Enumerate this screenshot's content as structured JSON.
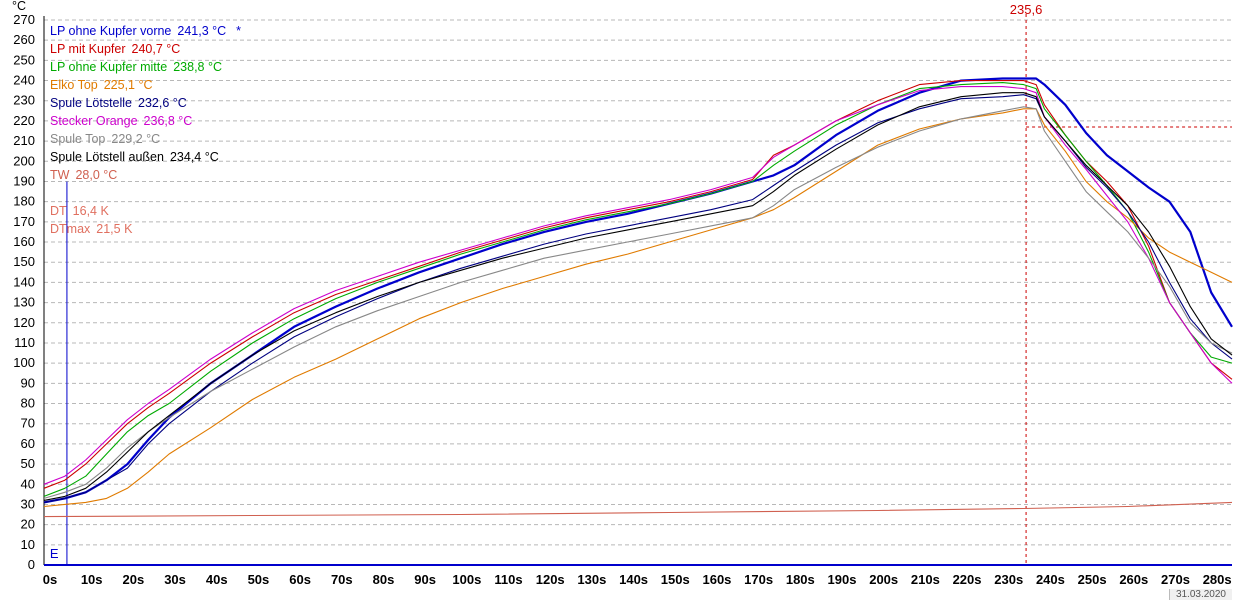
{
  "chart_data": {
    "type": "line",
    "ylabel": "°C",
    "xlim": [
      0,
      285
    ],
    "ylim": [
      0,
      270
    ],
    "y_ticks": [
      0,
      10,
      20,
      30,
      40,
      50,
      60,
      70,
      80,
      90,
      100,
      110,
      120,
      130,
      140,
      150,
      160,
      170,
      180,
      190,
      200,
      210,
      220,
      230,
      240,
      250,
      260,
      270
    ],
    "x_ticks": [
      "0s",
      "10s",
      "20s",
      "30s",
      "40s",
      "50s",
      "60s",
      "70s",
      "80s",
      "90s",
      "100s",
      "110s",
      "120s",
      "130s",
      "140s",
      "150s",
      "160s",
      "170s",
      "180s",
      "190s",
      "200s",
      "210s",
      "220s",
      "230s",
      "240s",
      "250s",
      "260s",
      "270s",
      "280s"
    ],
    "grid": true,
    "legend_position": "top-left",
    "cursor": {
      "x": 235.6,
      "label": "235,6",
      "y_marker": 217
    },
    "event_marker": {
      "x": 5.5,
      "label": "E"
    },
    "series": [
      {
        "name": "LP ohne Kupfer vorne",
        "reading": "241,3 °C",
        "color": "#0000cc",
        "width": 2.2,
        "active_marker": "*",
        "x": [
          0,
          5,
          10,
          15,
          20,
          25,
          30,
          40,
          50,
          60,
          70,
          80,
          90,
          100,
          110,
          120,
          130,
          140,
          150,
          160,
          170,
          175,
          180,
          190,
          200,
          210,
          220,
          230,
          235,
          238,
          240,
          245,
          250,
          255,
          260,
          265,
          270,
          275,
          280,
          285
        ],
        "y": [
          31,
          33,
          36,
          42,
          50,
          62,
          73,
          90,
          104,
          118,
          128,
          137,
          145,
          152,
          159,
          165,
          170,
          174,
          179,
          184,
          190,
          193,
          198,
          213,
          225,
          234,
          240,
          241,
          241,
          241,
          238,
          228,
          214,
          203,
          195,
          187,
          180,
          165,
          135,
          118
        ]
      },
      {
        "name": "LP mit Kupfer",
        "reading": "240,7 °C",
        "color": "#cc0000",
        "width": 1.1,
        "x": [
          0,
          5,
          10,
          15,
          20,
          25,
          30,
          40,
          50,
          60,
          70,
          80,
          90,
          100,
          110,
          120,
          130,
          140,
          150,
          160,
          170,
          175,
          180,
          190,
          200,
          210,
          220,
          230,
          235,
          238,
          240,
          245,
          250,
          255,
          260,
          265,
          270,
          275,
          280,
          285
        ],
        "y": [
          38,
          42,
          50,
          60,
          70,
          78,
          85,
          100,
          113,
          125,
          134,
          141,
          148,
          155,
          161,
          167,
          172,
          176,
          180,
          185,
          191,
          203,
          208,
          220,
          230,
          238,
          240,
          240,
          240,
          238,
          228,
          213,
          200,
          190,
          178,
          158,
          130,
          115,
          100,
          92
        ]
      },
      {
        "name": "LP ohne Kupfer mitte",
        "reading": "238,8 °C",
        "color": "#00aa00",
        "width": 1.1,
        "x": [
          0,
          5,
          10,
          15,
          20,
          25,
          30,
          40,
          50,
          60,
          70,
          80,
          90,
          100,
          110,
          120,
          130,
          140,
          150,
          160,
          170,
          175,
          180,
          190,
          200,
          210,
          220,
          230,
          235,
          238,
          240,
          245,
          250,
          255,
          260,
          265,
          270,
          275,
          280,
          285
        ],
        "y": [
          34,
          38,
          44,
          55,
          66,
          74,
          80,
          96,
          110,
          122,
          132,
          140,
          147,
          154,
          160,
          166,
          171,
          175,
          179,
          184,
          190,
          198,
          205,
          218,
          228,
          236,
          238,
          239,
          238,
          236,
          226,
          213,
          200,
          188,
          175,
          155,
          130,
          115,
          103,
          100
        ]
      },
      {
        "name": "Elko Top",
        "reading": "225,1 °C",
        "color": "#e07b00",
        "width": 1.1,
        "x": [
          0,
          5,
          10,
          15,
          20,
          25,
          30,
          40,
          50,
          60,
          70,
          80,
          90,
          100,
          110,
          120,
          130,
          140,
          150,
          160,
          170,
          175,
          180,
          190,
          200,
          210,
          220,
          230,
          235,
          238,
          240,
          245,
          250,
          255,
          260,
          265,
          270,
          275,
          280,
          285
        ],
        "y": [
          29,
          30,
          31,
          33,
          38,
          46,
          55,
          68,
          82,
          93,
          102,
          112,
          122,
          130,
          137,
          143,
          149,
          154,
          160,
          166,
          172,
          176,
          182,
          195,
          208,
          216,
          221,
          224,
          226,
          226,
          218,
          205,
          190,
          180,
          172,
          162,
          155,
          150,
          145,
          140
        ]
      },
      {
        "name": "Spule Lötstelle",
        "reading": "232,6 °C",
        "color": "#000080",
        "width": 1.1,
        "x": [
          0,
          5,
          10,
          15,
          20,
          25,
          30,
          40,
          50,
          60,
          70,
          80,
          90,
          100,
          110,
          120,
          130,
          140,
          150,
          160,
          170,
          175,
          180,
          190,
          200,
          210,
          220,
          230,
          235,
          238,
          240,
          245,
          250,
          255,
          260,
          265,
          270,
          275,
          280,
          285
        ],
        "y": [
          31,
          33,
          36,
          42,
          48,
          60,
          70,
          86,
          100,
          113,
          123,
          132,
          140,
          147,
          153,
          159,
          164,
          168,
          172,
          176,
          181,
          188,
          195,
          208,
          219,
          226,
          231,
          232,
          233,
          231,
          222,
          210,
          197,
          187,
          175,
          160,
          140,
          122,
          110,
          102
        ]
      },
      {
        "name": "Stecker Orange",
        "reading": "236,8 °C",
        "color": "#cc00cc",
        "width": 1.1,
        "x": [
          0,
          5,
          10,
          15,
          20,
          25,
          30,
          40,
          50,
          60,
          70,
          80,
          90,
          100,
          110,
          120,
          130,
          140,
          150,
          160,
          170,
          175,
          180,
          190,
          200,
          210,
          220,
          230,
          235,
          238,
          240,
          245,
          250,
          255,
          260,
          265,
          270,
          275,
          280,
          285
        ],
        "y": [
          40,
          44,
          52,
          62,
          72,
          80,
          87,
          102,
          115,
          127,
          136,
          143,
          150,
          156,
          162,
          168,
          173,
          177,
          181,
          186,
          192,
          202,
          208,
          220,
          228,
          235,
          237,
          237,
          236,
          234,
          222,
          208,
          196,
          183,
          170,
          152,
          130,
          115,
          100,
          90
        ]
      },
      {
        "name": "Spule Top",
        "reading": "229,2 °C",
        "color": "#888888",
        "width": 1.1,
        "x": [
          0,
          5,
          10,
          15,
          20,
          25,
          30,
          40,
          50,
          60,
          70,
          80,
          90,
          100,
          110,
          120,
          130,
          140,
          150,
          160,
          170,
          175,
          180,
          190,
          200,
          210,
          220,
          230,
          235,
          238,
          240,
          245,
          250,
          255,
          260,
          265,
          270,
          275,
          280,
          285
        ],
        "y": [
          33,
          36,
          40,
          48,
          58,
          66,
          73,
          86,
          97,
          108,
          118,
          126,
          133,
          140,
          146,
          152,
          156,
          160,
          164,
          168,
          172,
          178,
          186,
          197,
          207,
          215,
          221,
          225,
          227,
          226,
          215,
          200,
          185,
          175,
          165,
          152,
          138,
          120,
          110,
          105
        ]
      },
      {
        "name": "Spule Lötstell außen",
        "reading": "234,4 °C",
        "color": "#000000",
        "width": 1.1,
        "x": [
          0,
          5,
          10,
          15,
          20,
          25,
          30,
          40,
          50,
          60,
          70,
          80,
          90,
          100,
          110,
          120,
          130,
          140,
          150,
          160,
          170,
          175,
          180,
          190,
          200,
          210,
          220,
          230,
          235,
          238,
          240,
          245,
          250,
          255,
          260,
          265,
          270,
          275,
          280,
          285
        ],
        "y": [
          32,
          34,
          38,
          46,
          56,
          66,
          74,
          90,
          104,
          116,
          125,
          133,
          140,
          146,
          152,
          157,
          162,
          166,
          170,
          174,
          178,
          185,
          193,
          206,
          218,
          227,
          232,
          234,
          234,
          232,
          222,
          210,
          198,
          188,
          178,
          165,
          148,
          128,
          112,
          104
        ]
      },
      {
        "name": "TW",
        "reading": "28,0 °C",
        "color": "#d06050",
        "width": 1.1,
        "x": [
          0,
          50,
          100,
          150,
          200,
          235,
          260,
          285
        ],
        "y": [
          24,
          24.5,
          25,
          26,
          27,
          28,
          29,
          31
        ]
      }
    ],
    "info_rows": [
      {
        "label": "DT",
        "reading": "16,4 K",
        "color": "#e07060"
      },
      {
        "label": "DTmax",
        "reading": "21,5 K",
        "color": "#e07060"
      }
    ]
  },
  "status_date": "31.03.2020"
}
